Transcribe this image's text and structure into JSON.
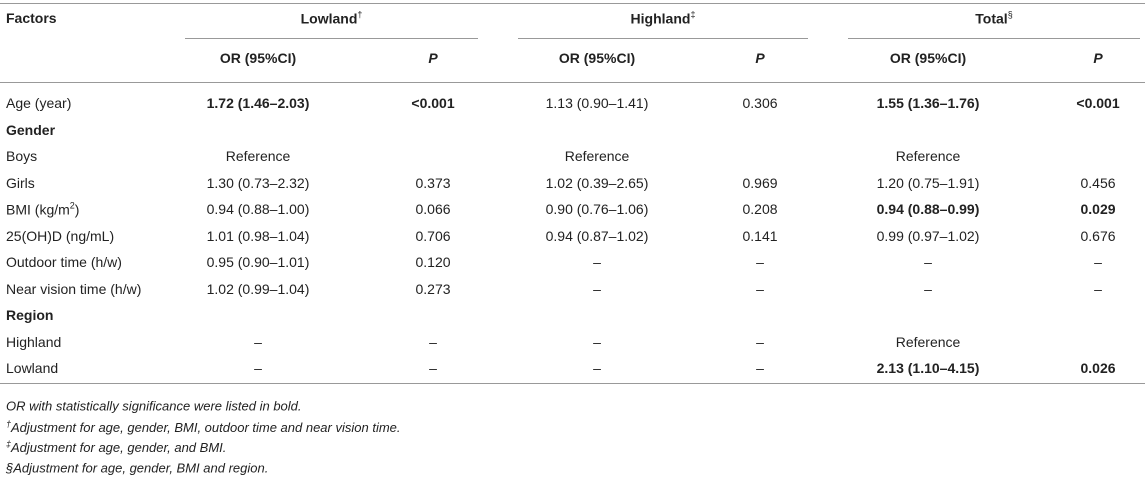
{
  "table": {
    "corner": "Factors",
    "groups": [
      {
        "label": "Lowland",
        "mark": "†"
      },
      {
        "label": "Highland",
        "mark": "‡"
      },
      {
        "label": "Total",
        "mark": "§"
      }
    ],
    "subheaders": [
      "OR (95%CI)",
      "P",
      "OR (95%CI)",
      "P",
      "OR (95%CI)",
      "P"
    ],
    "rows": [
      {
        "label": "Age (year)",
        "cells": [
          "1.72 (1.46–2.03)",
          "<0.001",
          "1.13 (0.90–1.41)",
          "0.306",
          "1.55 (1.36–1.76)",
          "<0.001"
        ],
        "bold": [
          true,
          true,
          false,
          false,
          true,
          true
        ]
      },
      {
        "section": "Gender"
      },
      {
        "label": "Boys",
        "cells": [
          "Reference",
          null,
          "Reference",
          null,
          "Reference",
          null
        ],
        "bold": [
          false,
          false,
          false,
          false,
          false,
          false
        ]
      },
      {
        "label": "Girls",
        "cells": [
          "1.30 (0.73–2.32)",
          "0.373",
          "1.02 (0.39–2.65)",
          "0.969",
          "1.20 (0.75–1.91)",
          "0.456"
        ],
        "bold": [
          false,
          false,
          false,
          false,
          false,
          false
        ]
      },
      {
        "label": "BMI (kg/m",
        "label_sup": "2",
        "label_after": ")",
        "cells": [
          "0.94 (0.88–1.00)",
          "0.066",
          "0.90 (0.76–1.06)",
          "0.208",
          "0.94 (0.88–0.99)",
          "0.029"
        ],
        "bold": [
          false,
          false,
          false,
          false,
          true,
          true
        ]
      },
      {
        "label": "25(OH)D (ng/mL)",
        "cells": [
          "1.01 (0.98–1.04)",
          "0.706",
          "0.94 (0.87–1.02)",
          "0.141",
          "0.99 (0.97–1.02)",
          "0.676"
        ],
        "bold": [
          false,
          false,
          false,
          false,
          false,
          false
        ]
      },
      {
        "label": "Outdoor time (h/w)",
        "cells": [
          "0.95 (0.90–1.01)",
          "0.120",
          "–",
          "–",
          "–",
          "–"
        ],
        "bold": [
          false,
          false,
          false,
          false,
          false,
          false
        ]
      },
      {
        "label": "Near vision time (h/w)",
        "cells": [
          "1.02 (0.99–1.04)",
          "0.273",
          "–",
          "–",
          "–",
          "–"
        ],
        "bold": [
          false,
          false,
          false,
          false,
          false,
          false
        ]
      },
      {
        "section": "Region"
      },
      {
        "label": "Highland",
        "cells": [
          "–",
          "–",
          "–",
          "–",
          "Reference",
          null
        ],
        "bold": [
          false,
          false,
          false,
          false,
          false,
          false
        ]
      },
      {
        "label": "Lowland",
        "cells": [
          "–",
          "–",
          "–",
          "–",
          "2.13 (1.10–4.15)",
          "0.026"
        ],
        "bold": [
          false,
          false,
          false,
          false,
          true,
          true
        ]
      }
    ],
    "footnotes": [
      {
        "text": "OR with statistically significance were listed in bold."
      },
      {
        "mark": "†",
        "text": "Adjustment for age, gender, BMI, outdoor time and near vision time."
      },
      {
        "mark": "‡",
        "text": "Adjustment for age, gender, and BMI."
      },
      {
        "text": "§Adjustment for age, gender, BMI and region."
      }
    ]
  }
}
